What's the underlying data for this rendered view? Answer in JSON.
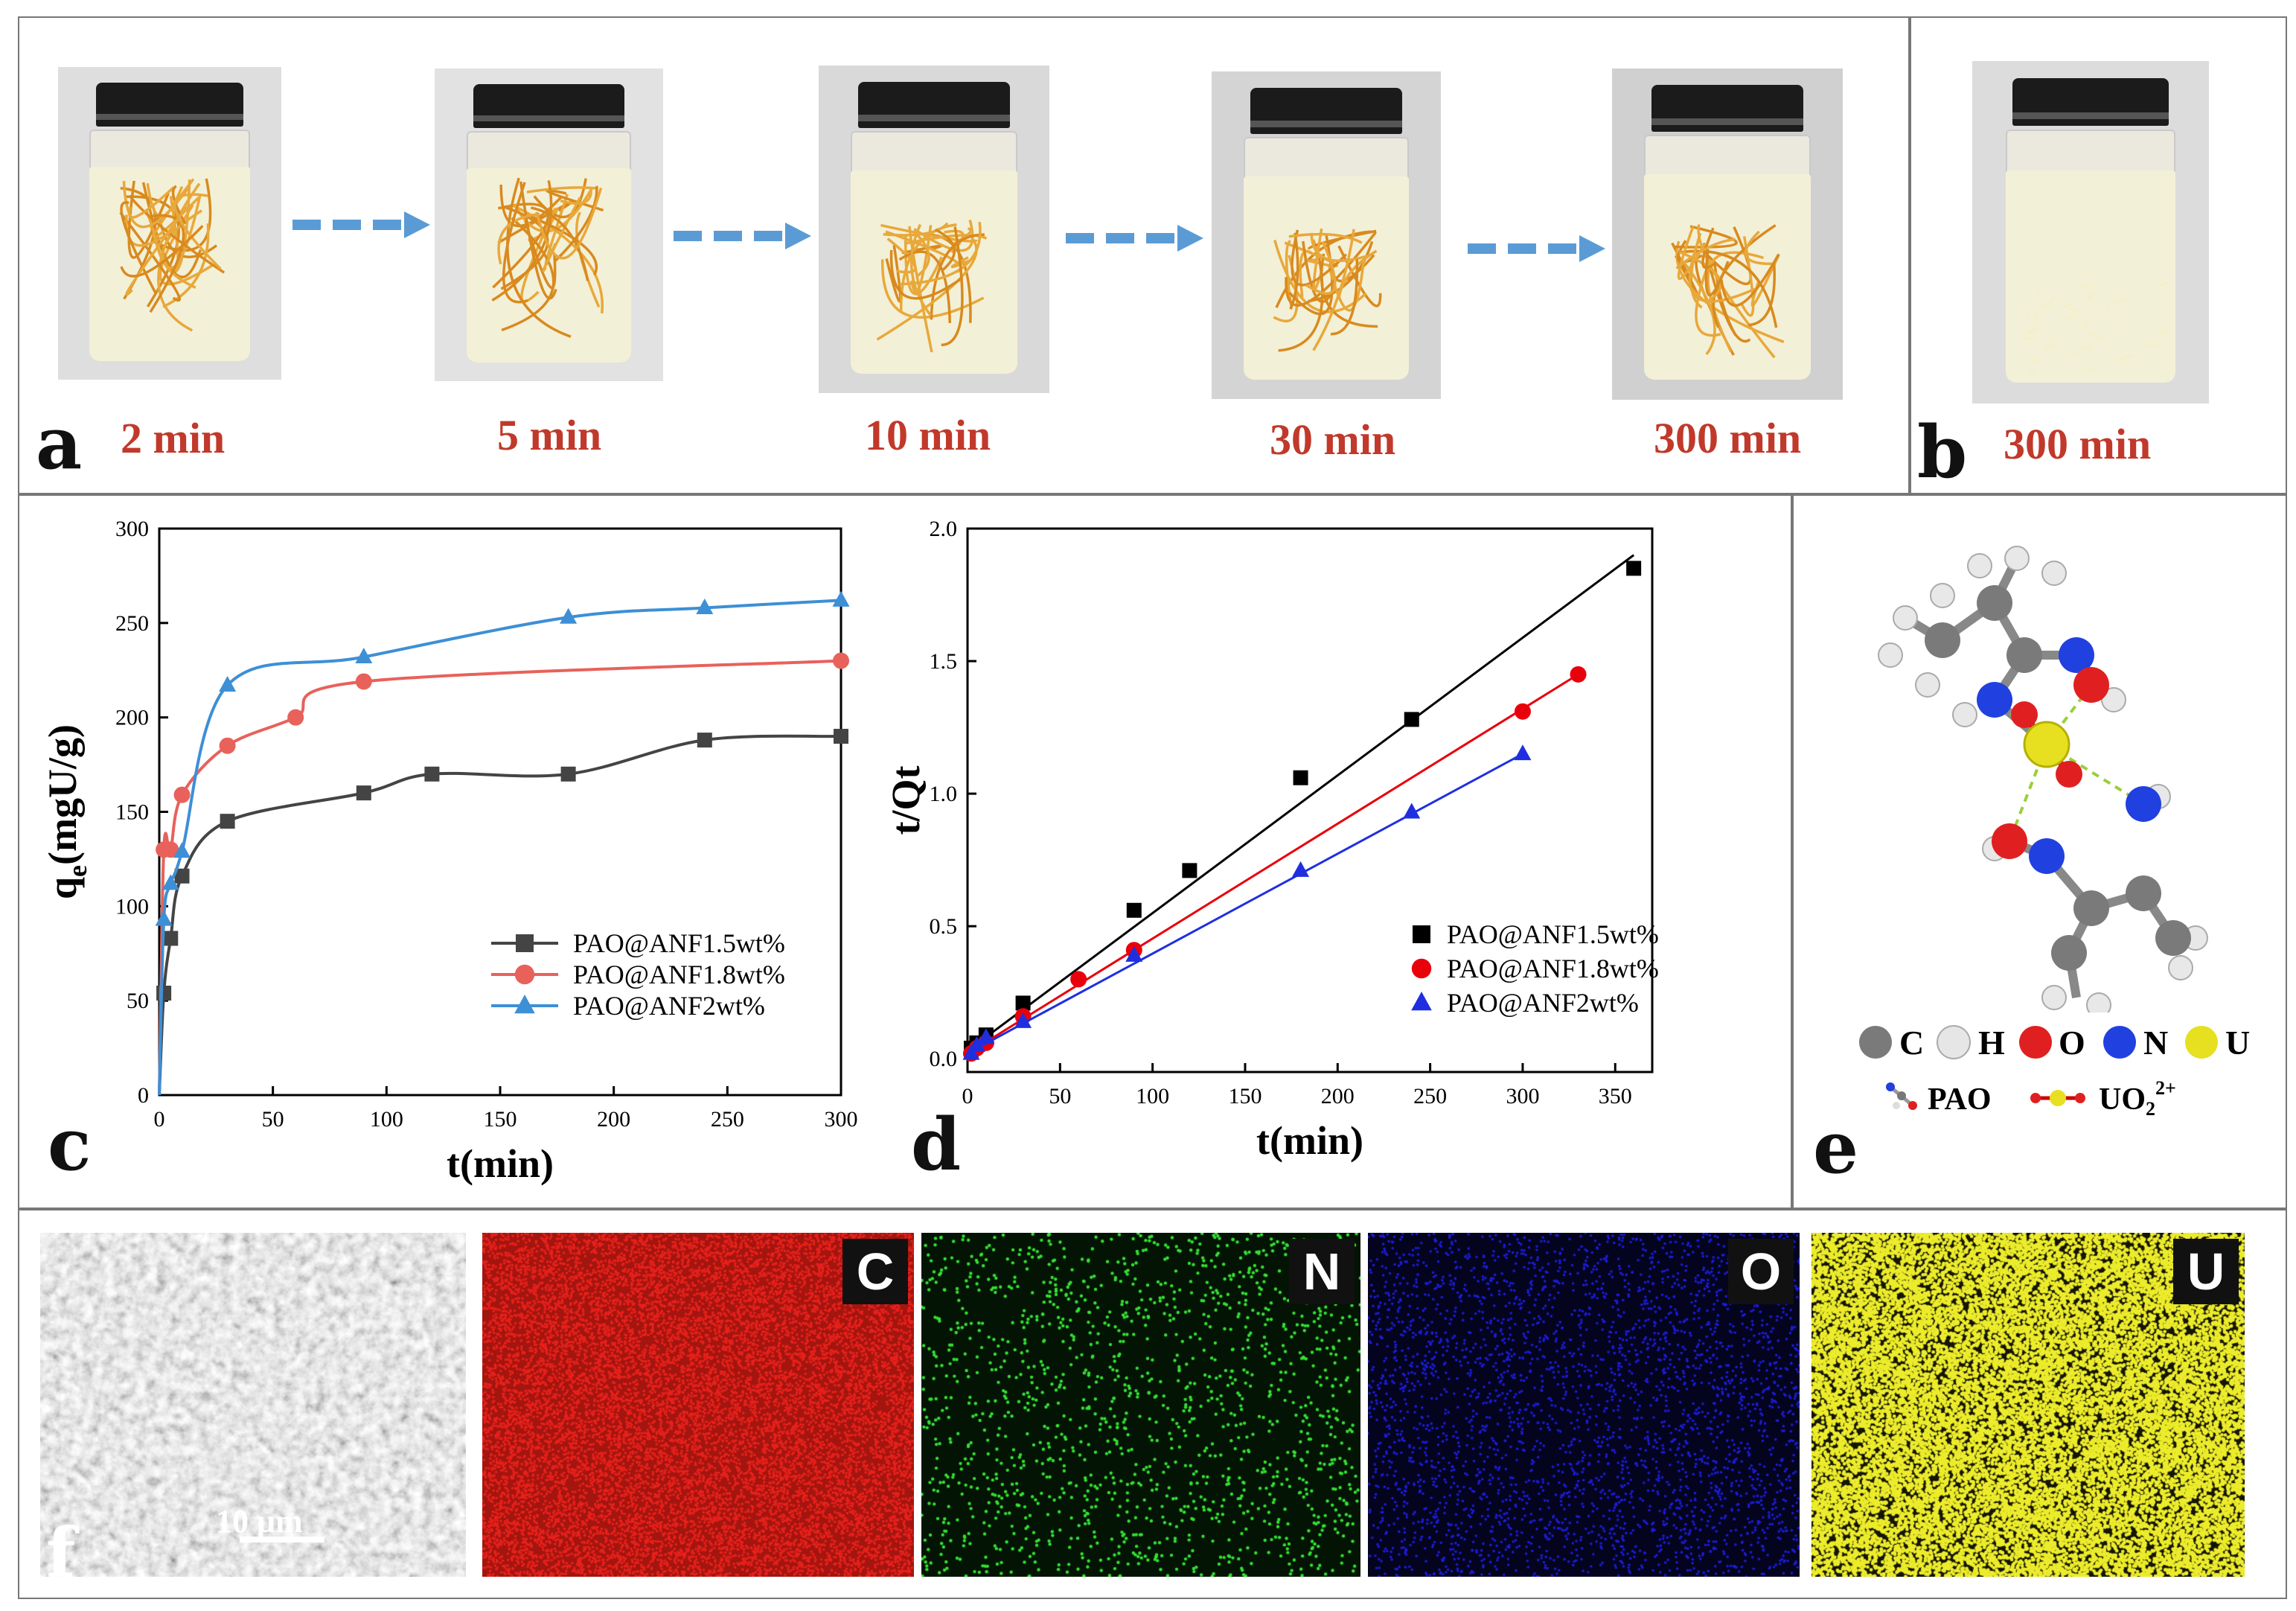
{
  "panel_a": {
    "label": "a",
    "times": [
      "2 min",
      "5 min",
      "10 min",
      "30 min",
      "300 min"
    ]
  },
  "panel_b": {
    "label": "b",
    "time": "300 min"
  },
  "chart_data": [
    {
      "panel": "c",
      "type": "line",
      "xlabel": "t(min)",
      "ylabel": "qe(mgU/g)",
      "ylabel_main": "q",
      "ylabel_sub": "e",
      "ylabel_rest": "(mgU/g)",
      "xlim": [
        0,
        300
      ],
      "ylim": [
        0,
        300
      ],
      "xticks": [
        0,
        50,
        100,
        150,
        200,
        250,
        300
      ],
      "yticks": [
        0,
        50,
        100,
        150,
        200,
        250,
        300
      ],
      "legend_position": "bottom-right",
      "series": [
        {
          "name": "PAO@ANF1.5wt%",
          "color": "#444444",
          "marker": "square",
          "x": [
            0,
            2,
            5,
            10,
            30,
            90,
            120,
            180,
            240,
            300
          ],
          "y": [
            0,
            54,
            83,
            116,
            145,
            160,
            170,
            170,
            188,
            190
          ]
        },
        {
          "name": "PAO@ANF1.8wt%",
          "color": "#e8615b",
          "marker": "circle",
          "x": [
            0,
            2,
            5,
            10,
            30,
            60,
            90,
            300
          ],
          "y": [
            0,
            130,
            130,
            159,
            185,
            200,
            219,
            230
          ]
        },
        {
          "name": "PAO@ANF2wt%",
          "color": "#3d8fd6",
          "marker": "triangle",
          "x": [
            0,
            2,
            5,
            10,
            30,
            90,
            180,
            240,
            300
          ],
          "y": [
            0,
            93,
            112,
            129,
            217,
            232,
            253,
            258,
            262
          ]
        }
      ]
    },
    {
      "panel": "d",
      "type": "scatter",
      "xlabel": "t(min)",
      "ylabel": "t/Qt",
      "xlim": [
        0,
        370
      ],
      "ylim": [
        -0.05,
        2.0
      ],
      "xticks": [
        0,
        50,
        100,
        150,
        200,
        250,
        300,
        350
      ],
      "yticks": [
        0.0,
        0.5,
        1.0,
        1.5,
        2.0
      ],
      "ytick_labels": [
        "0.0",
        "0.5",
        "1.0",
        "1.5",
        "2.0"
      ],
      "legend_position": "bottom-right",
      "series": [
        {
          "name": "PAO@ANF1.5wt%",
          "color": "#000000",
          "marker": "square",
          "x": [
            2,
            5,
            10,
            30,
            90,
            120,
            180,
            240,
            360
          ],
          "y": [
            0.04,
            0.06,
            0.09,
            0.21,
            0.56,
            0.71,
            1.06,
            1.28,
            1.85
          ],
          "fit": [
            [
              0,
              0.03
            ],
            [
              360,
              1.9
            ]
          ]
        },
        {
          "name": "PAO@ANF1.8wt%",
          "color": "#e8000b",
          "marker": "circle",
          "x": [
            2,
            5,
            10,
            30,
            60,
            90,
            300,
            330
          ],
          "y": [
            0.02,
            0.04,
            0.06,
            0.16,
            0.3,
            0.41,
            1.31,
            1.45
          ],
          "fit": [
            [
              0,
              0.02
            ],
            [
              330,
              1.45
            ]
          ]
        },
        {
          "name": "PAO@ANF2wt%",
          "color": "#1f2fe0",
          "marker": "triangle",
          "x": [
            2,
            5,
            10,
            30,
            90,
            180,
            240,
            300
          ],
          "y": [
            0.02,
            0.05,
            0.08,
            0.14,
            0.39,
            0.71,
            0.93,
            1.15
          ],
          "fit": [
            [
              0,
              0.02
            ],
            [
              300,
              1.15
            ]
          ]
        }
      ]
    }
  ],
  "panel_c": {
    "label": "c"
  },
  "panel_d": {
    "label": "d"
  },
  "panel_e": {
    "label": "e",
    "atoms": [
      {
        "symbol": "C",
        "color": "#7a7a7a"
      },
      {
        "symbol": "H",
        "color": "#e6e6e6"
      },
      {
        "symbol": "O",
        "color": "#e02020"
      },
      {
        "symbol": "N",
        "color": "#2040e0"
      },
      {
        "symbol": "U",
        "color": "#e6e020"
      }
    ],
    "pao_label": "PAO",
    "uo2_label": "UO",
    "uo2_sub": "2",
    "uo2_sup": "2+"
  },
  "panel_f": {
    "label": "f",
    "scale_bar": "10 μm",
    "maps": [
      {
        "element": "C",
        "color": "#e8211c",
        "bg": "#a3150f"
      },
      {
        "element": "N",
        "color": "#33e033",
        "bg": "#041404"
      },
      {
        "element": "O",
        "color": "#1c1cd8",
        "bg": "#04041f"
      },
      {
        "element": "U",
        "color": "#ecec2c",
        "bg": "#151505"
      }
    ]
  }
}
